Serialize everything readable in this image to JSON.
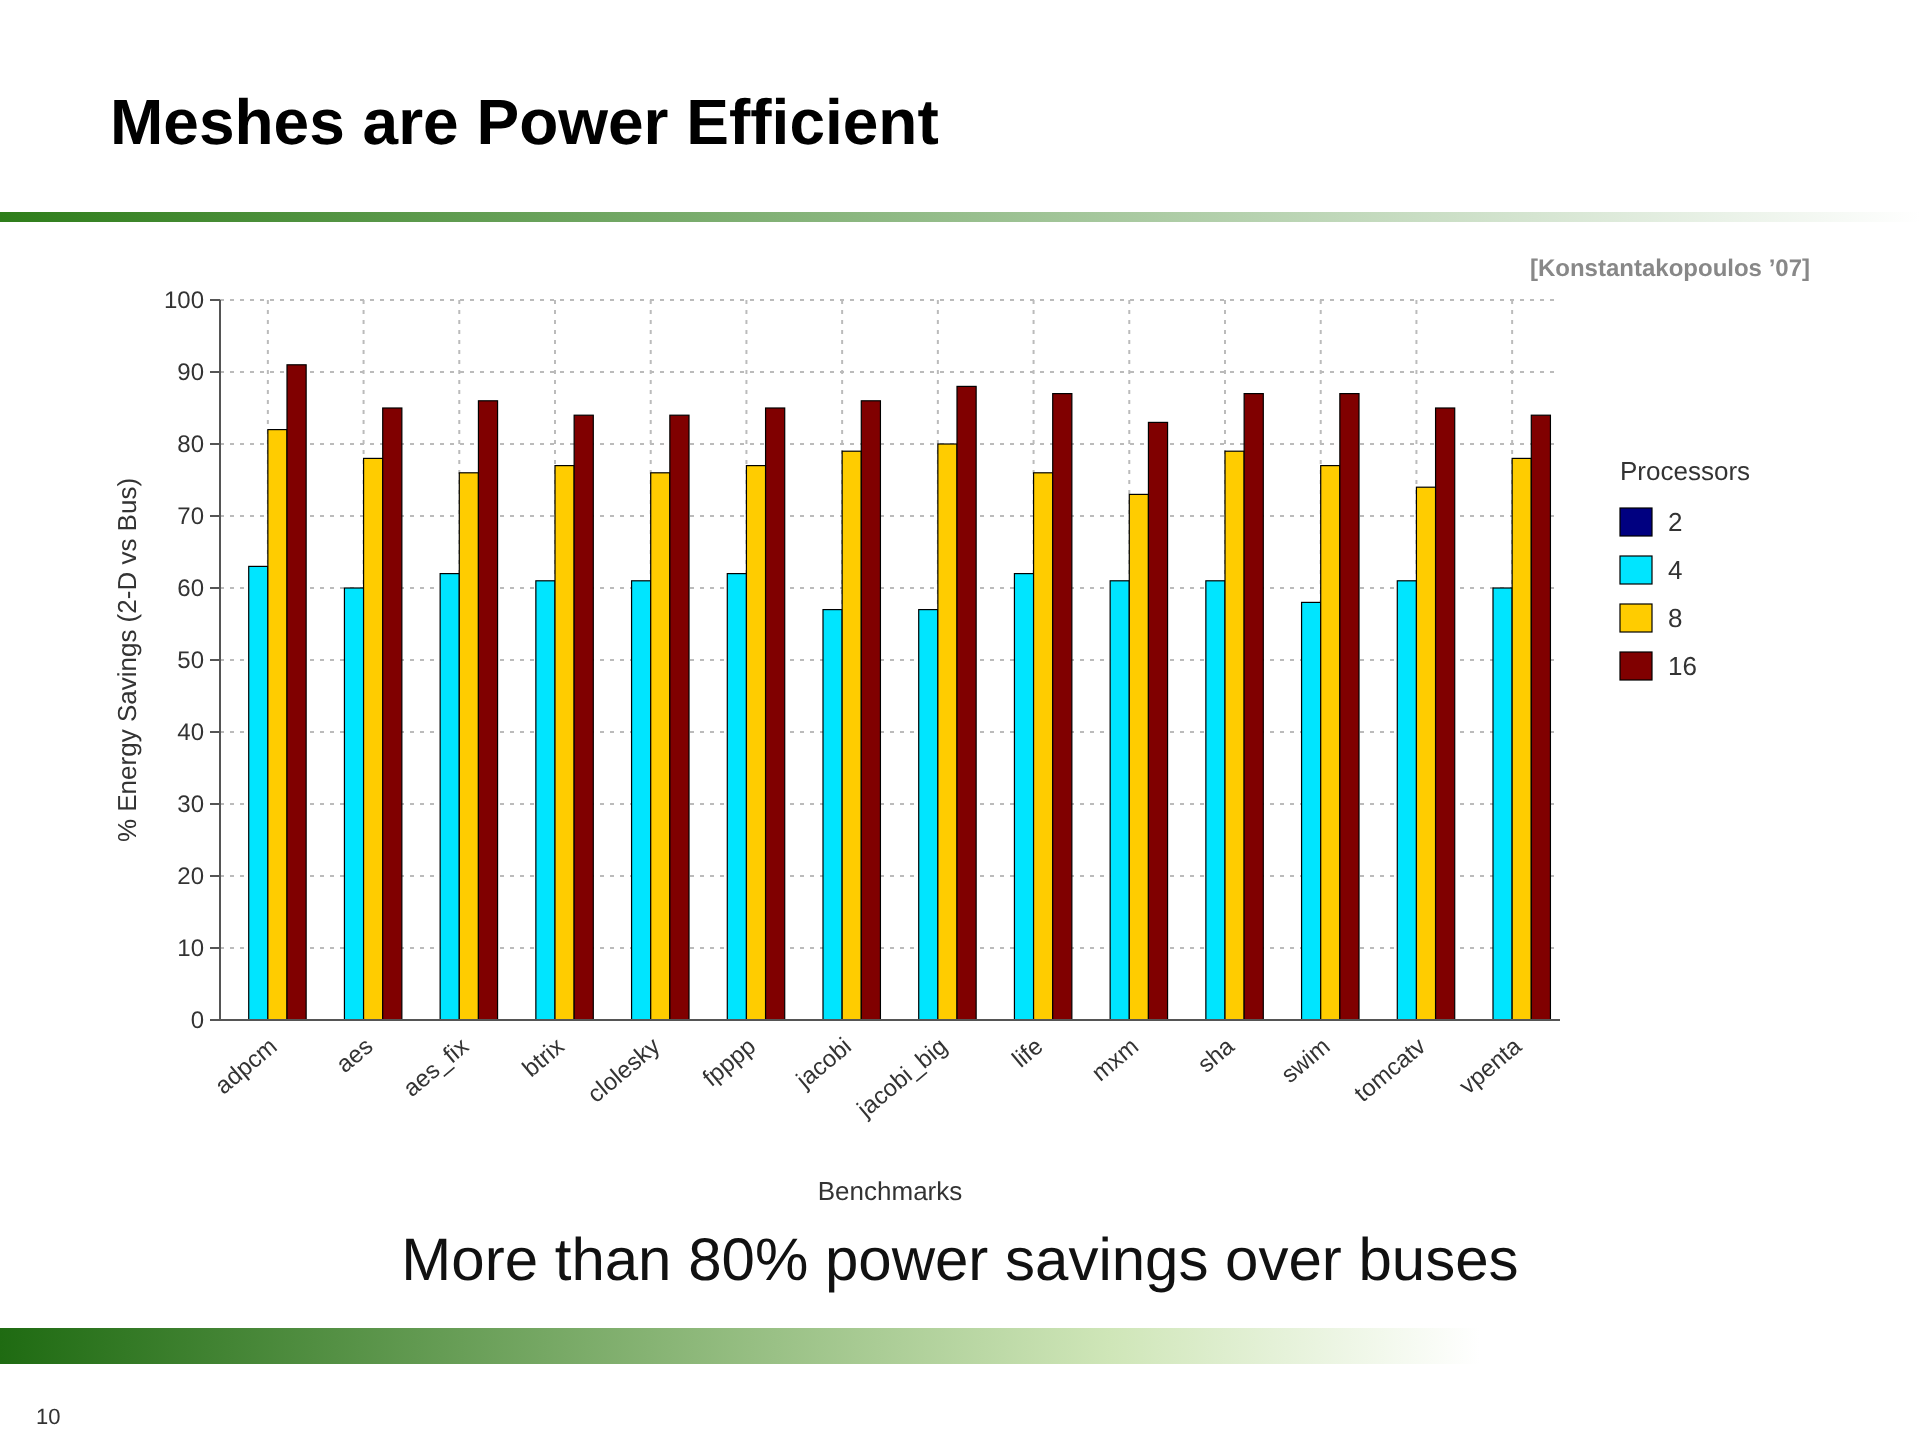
{
  "chart_data": {
    "type": "bar",
    "title": "Meshes are Power Efficient",
    "subtitle": "More than 80% power savings over buses",
    "xlabel": "Benchmarks",
    "ylabel": "% Energy Savings (2-D vs Bus)",
    "legend_title": "Processors",
    "categories": [
      "adpcm",
      "aes",
      "aes_fix",
      "btrix",
      "clolesky",
      "fpppp",
      "jacobi",
      "jacobi_big",
      "life",
      "mxm",
      "sha",
      "swim",
      "tomcatv",
      "vpenta"
    ],
    "series": [
      {
        "name": "2",
        "color": "#000080",
        "values": [
          0,
          0,
          0,
          0,
          0,
          0,
          0,
          0,
          0,
          0,
          0,
          0,
          0,
          0
        ]
      },
      {
        "name": "4",
        "color": "#00e5ff",
        "values": [
          63,
          60,
          62,
          61,
          61,
          62,
          57,
          57,
          62,
          61,
          61,
          58,
          61,
          60
        ]
      },
      {
        "name": "8",
        "color": "#ffcc00",
        "values": [
          82,
          78,
          76,
          77,
          76,
          77,
          79,
          80,
          76,
          73,
          79,
          77,
          74,
          78
        ]
      },
      {
        "name": "16",
        "color": "#800000",
        "values": [
          91,
          85,
          86,
          84,
          84,
          85,
          86,
          88,
          87,
          83,
          87,
          87,
          85,
          84
        ]
      }
    ],
    "ylim": [
      0,
      100
    ],
    "yticks": [
      0,
      10,
      20,
      30,
      40,
      50,
      60,
      70,
      80,
      90,
      100
    ],
    "grid": true,
    "legend": "right",
    "annotations": [
      "[Konstantakopoulos ’07]",
      "10"
    ]
  }
}
